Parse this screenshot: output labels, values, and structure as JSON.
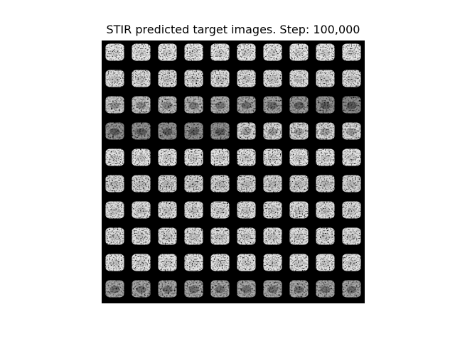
{
  "figure": {
    "title": "STIR predicted target images. Step: 100,000"
  },
  "grid": {
    "rows": 10,
    "cols": 10
  },
  "colors": {
    "background": "#ffffff",
    "panel": "#000000",
    "text": "#000000"
  }
}
